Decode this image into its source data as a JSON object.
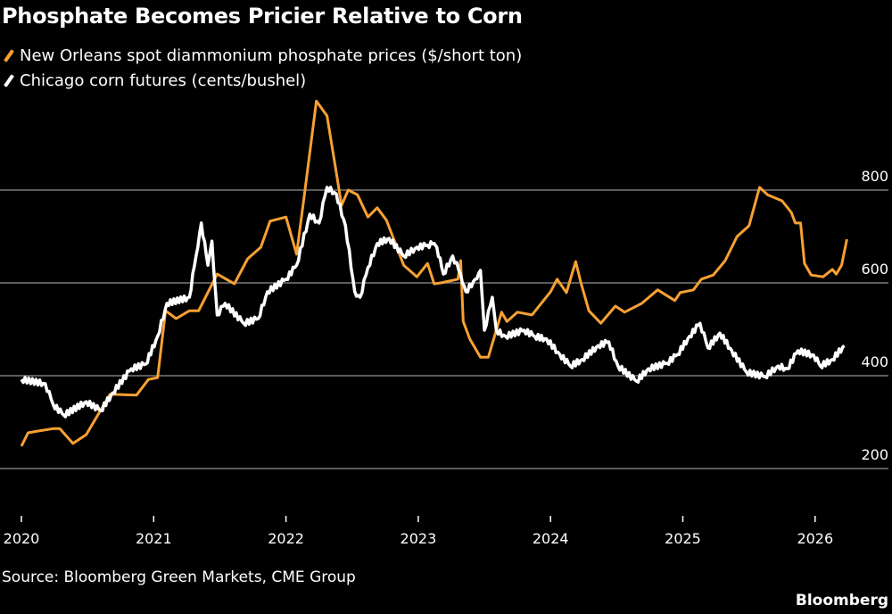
{
  "chart_data": {
    "type": "line",
    "title": "Phosphate Becomes Pricier Relative to Corn",
    "xlabel": "",
    "ylabel": "",
    "xlim": [
      2020,
      2026.55
    ],
    "ylim": [
      150,
      1000
    ],
    "x_ticks": [
      "2020",
      "2021",
      "2022",
      "2023",
      "2024",
      "2025",
      "2026"
    ],
    "y_ticks": [
      200,
      400,
      600,
      800
    ],
    "grid": true,
    "y_axis_side": "right",
    "legend_placement": "top-left",
    "series": [
      {
        "name": "New Orleans spot diammonium phosphate prices ($/short ton)",
        "color": "#f7a133",
        "points": [
          [
            2020.0,
            248
          ],
          [
            2020.05,
            277
          ],
          [
            2020.11,
            280
          ],
          [
            2020.24,
            286
          ],
          [
            2020.29,
            286
          ],
          [
            2020.39,
            254
          ],
          [
            2020.49,
            273
          ],
          [
            2020.67,
            360
          ],
          [
            2020.87,
            358
          ],
          [
            2020.96,
            392
          ],
          [
            2021.03,
            396
          ],
          [
            2021.09,
            540
          ],
          [
            2021.17,
            523
          ],
          [
            2021.27,
            540
          ],
          [
            2021.34,
            540
          ],
          [
            2021.48,
            619
          ],
          [
            2021.61,
            598
          ],
          [
            2021.71,
            652
          ],
          [
            2021.81,
            677
          ],
          [
            2021.88,
            733
          ],
          [
            2022.0,
            742
          ],
          [
            2022.08,
            662
          ],
          [
            2022.14,
            792
          ],
          [
            2022.23,
            992
          ],
          [
            2022.31,
            960
          ],
          [
            2022.38,
            838
          ],
          [
            2022.42,
            767
          ],
          [
            2022.47,
            800
          ],
          [
            2022.54,
            790
          ],
          [
            2022.62,
            742
          ],
          [
            2022.69,
            762
          ],
          [
            2022.76,
            735
          ],
          [
            2022.89,
            638
          ],
          [
            2022.99,
            613
          ],
          [
            2023.07,
            642
          ],
          [
            2023.12,
            598
          ],
          [
            2023.17,
            600
          ],
          [
            2023.3,
            608
          ],
          [
            2023.32,
            648
          ],
          [
            2023.34,
            517
          ],
          [
            2023.39,
            479
          ],
          [
            2023.47,
            440
          ],
          [
            2023.53,
            440
          ],
          [
            2023.63,
            537
          ],
          [
            2023.67,
            517
          ],
          [
            2023.75,
            537
          ],
          [
            2023.86,
            531
          ],
          [
            2023.93,
            556
          ],
          [
            2024.0,
            581
          ],
          [
            2024.05,
            608
          ],
          [
            2024.12,
            579
          ],
          [
            2024.19,
            646
          ],
          [
            2024.23,
            600
          ],
          [
            2024.29,
            540
          ],
          [
            2024.38,
            513
          ],
          [
            2024.49,
            550
          ],
          [
            2024.56,
            537
          ],
          [
            2024.69,
            556
          ],
          [
            2024.81,
            585
          ],
          [
            2024.94,
            562
          ],
          [
            2024.98,
            579
          ],
          [
            2025.08,
            585
          ],
          [
            2025.14,
            608
          ],
          [
            2025.23,
            617
          ],
          [
            2025.32,
            648
          ],
          [
            2025.41,
            700
          ],
          [
            2025.5,
            723
          ],
          [
            2025.58,
            806
          ],
          [
            2025.64,
            790
          ],
          [
            2025.75,
            777
          ],
          [
            2025.82,
            752
          ],
          [
            2025.85,
            729
          ],
          [
            2025.89,
            729
          ],
          [
            2025.92,
            642
          ],
          [
            2025.97,
            617
          ],
          [
            2026.06,
            613
          ],
          [
            2026.13,
            629
          ],
          [
            2026.16,
            619
          ],
          [
            2026.2,
            638
          ],
          [
            2026.24,
            694
          ]
        ]
      },
      {
        "name": "Chicago corn futures (cents/bushel)",
        "color": "#ffffff",
        "points": [
          [
            2020.0,
            392
          ],
          [
            2020.18,
            383
          ],
          [
            2020.24,
            338
          ],
          [
            2020.32,
            315
          ],
          [
            2020.49,
            344
          ],
          [
            2020.6,
            325
          ],
          [
            2020.69,
            363
          ],
          [
            2020.83,
            415
          ],
          [
            2020.94,
            425
          ],
          [
            2021.03,
            485
          ],
          [
            2021.1,
            556
          ],
          [
            2021.27,
            569
          ],
          [
            2021.32,
            658
          ],
          [
            2021.36,
            729
          ],
          [
            2021.41,
            638
          ],
          [
            2021.44,
            690
          ],
          [
            2021.48,
            531
          ],
          [
            2021.54,
            556
          ],
          [
            2021.68,
            513
          ],
          [
            2021.79,
            523
          ],
          [
            2021.86,
            581
          ],
          [
            2022.0,
            608
          ],
          [
            2022.08,
            638
          ],
          [
            2022.18,
            748
          ],
          [
            2022.25,
            729
          ],
          [
            2022.31,
            806
          ],
          [
            2022.38,
            792
          ],
          [
            2022.45,
            723
          ],
          [
            2022.52,
            581
          ],
          [
            2022.56,
            569
          ],
          [
            2022.62,
            633
          ],
          [
            2022.69,
            685
          ],
          [
            2022.78,
            696
          ],
          [
            2022.89,
            658
          ],
          [
            2022.99,
            677
          ],
          [
            2023.07,
            681
          ],
          [
            2023.12,
            685
          ],
          [
            2023.14,
            677
          ],
          [
            2023.19,
            619
          ],
          [
            2023.26,
            658
          ],
          [
            2023.32,
            619
          ],
          [
            2023.36,
            581
          ],
          [
            2023.43,
            608
          ],
          [
            2023.47,
            627
          ],
          [
            2023.5,
            498
          ],
          [
            2023.56,
            569
          ],
          [
            2023.59,
            498
          ],
          [
            2023.66,
            485
          ],
          [
            2023.8,
            498
          ],
          [
            2023.88,
            485
          ],
          [
            2023.97,
            479
          ],
          [
            2024.07,
            446
          ],
          [
            2024.15,
            421
          ],
          [
            2024.24,
            435
          ],
          [
            2024.36,
            465
          ],
          [
            2024.44,
            473
          ],
          [
            2024.51,
            421
          ],
          [
            2024.65,
            388
          ],
          [
            2024.74,
            415
          ],
          [
            2024.88,
            427
          ],
          [
            2024.96,
            446
          ],
          [
            2025.05,
            485
          ],
          [
            2025.13,
            513
          ],
          [
            2025.19,
            460
          ],
          [
            2025.28,
            492
          ],
          [
            2025.37,
            454
          ],
          [
            2025.48,
            408
          ],
          [
            2025.62,
            398
          ],
          [
            2025.72,
            421
          ],
          [
            2025.79,
            415
          ],
          [
            2025.87,
            454
          ],
          [
            2025.99,
            444
          ],
          [
            2026.04,
            421
          ],
          [
            2026.13,
            435
          ],
          [
            2026.22,
            465
          ]
        ]
      }
    ]
  },
  "source": "Source: Bloomberg Green Markets, CME Group",
  "logo": "Bloomberg"
}
